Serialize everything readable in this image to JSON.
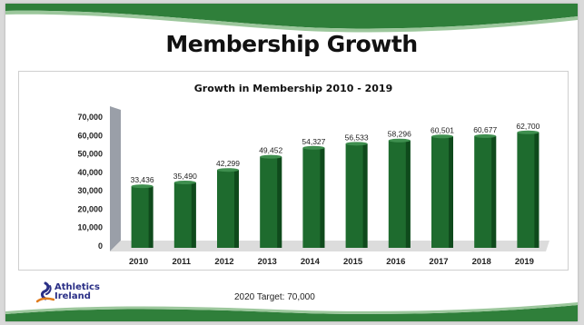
{
  "slide": {
    "title": "Membership Growth",
    "footer_note": "2020 Target: 70,000",
    "logo": {
      "line1": "Athletics",
      "line2": "Ireland"
    }
  },
  "colors": {
    "bar": "#1e6b2e",
    "bar_dark": "#0f4a1c",
    "bar_top": "#3f8f4f",
    "wave_green": "#2f7f3a",
    "logo_blue": "#2a2f86",
    "logo_orange": "#e07b1c"
  },
  "chart_data": {
    "type": "bar",
    "title": "Growth in Membership 2010 - 2019",
    "categories": [
      "2010",
      "2011",
      "2012",
      "2013",
      "2014",
      "2015",
      "2016",
      "2017",
      "2018",
      "2019"
    ],
    "values": [
      33436,
      35490,
      42299,
      49452,
      54327,
      56533,
      58296,
      60501,
      60677,
      62700
    ],
    "data_labels": [
      "33,436",
      "35,490",
      "42,299",
      "49,452",
      "54,327",
      "56,533",
      "58,296",
      "60,501",
      "60,677",
      "62,700"
    ],
    "ylim": [
      0,
      70000
    ],
    "yticks": [
      0,
      10000,
      20000,
      30000,
      40000,
      50000,
      60000,
      70000
    ],
    "ytick_labels": [
      "0",
      "10,000",
      "20,000",
      "30,000",
      "40,000",
      "50,000",
      "60,000",
      "70,000"
    ],
    "grid": false,
    "legend": "none"
  }
}
